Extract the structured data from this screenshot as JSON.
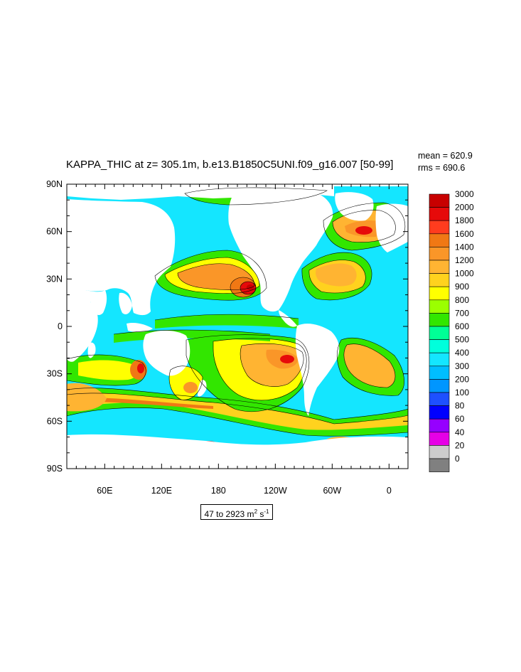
{
  "title": "KAPPA_THIC at z= 305.1m, b.e13.B1850C5UNI.f09_g16.007 [50-99]",
  "stats": {
    "mean": "mean = 620.9",
    "rms": "rms = 690.6"
  },
  "units": {
    "range": "47 to 2923 m",
    "exp1": "2",
    "mid": " s",
    "exp2": "-1"
  },
  "axes": {
    "lat_labels": [
      "90N",
      "60N",
      "30N",
      "0",
      "30S",
      "60S",
      "90S"
    ],
    "lon_labels": [
      "60E",
      "120E",
      "180",
      "120W",
      "60W",
      "0"
    ]
  },
  "colorbar": {
    "levels": [
      "3000",
      "2000",
      "1800",
      "1600",
      "1400",
      "1200",
      "1000",
      "900",
      "800",
      "700",
      "600",
      "500",
      "400",
      "300",
      "200",
      "100",
      "80",
      "60",
      "40",
      "20",
      "0"
    ],
    "colors": [
      "#c80000",
      "#e60a0a",
      "#ff3c1e",
      "#f07814",
      "#fa9628",
      "#ffb432",
      "#ffd21e",
      "#ffff00",
      "#9bff00",
      "#32e600",
      "#00ff96",
      "#00ffdc",
      "#14e6ff",
      "#00beff",
      "#0096ff",
      "#1e50ff",
      "#0000ff",
      "#9600ff",
      "#e600e6",
      "#cccccc",
      "#808080"
    ]
  },
  "colors": {
    "ocean_background": "#14e6ff",
    "land": "#ffffff",
    "contour": "#000000"
  }
}
